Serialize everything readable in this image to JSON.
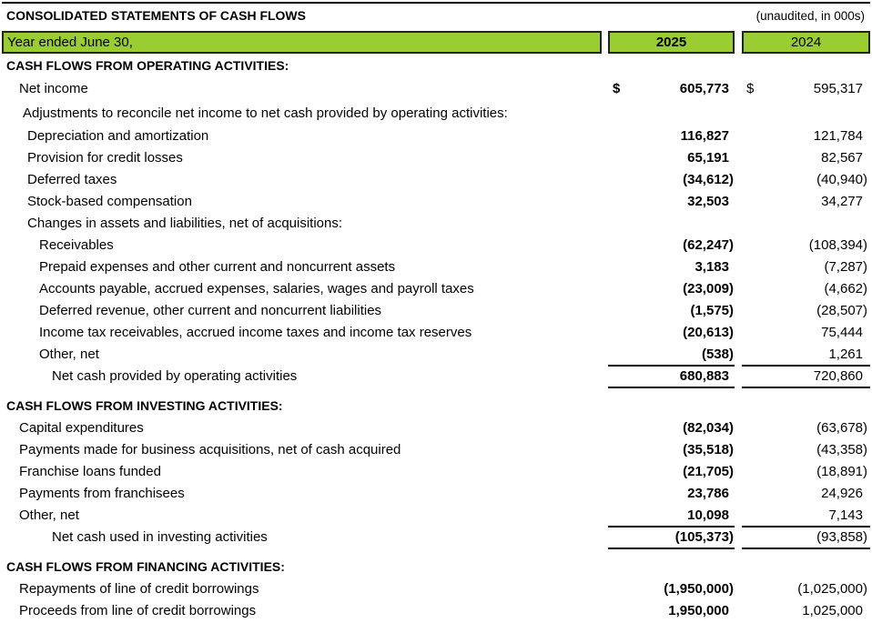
{
  "title": "CONSOLIDATED STATEMENTS OF CASH FLOWS",
  "note": "(unaudited, in 000s)",
  "header": {
    "label": "Year ended June 30,",
    "col1": "2025",
    "col2": "2024",
    "fill_color": "#9ACD32"
  },
  "rows": [
    {
      "label": "CASH FLOWS FROM OPERATING ACTIVITIES:",
      "type": "section"
    },
    {
      "label": "Net income",
      "indent": 1,
      "v2025": "605,773",
      "v2024": "595,317",
      "currency": "$"
    },
    {
      "label": "Adjustments to reconcile net income to net cash provided by operating activities:",
      "indent": 2
    },
    {
      "label": "Depreciation and amortization",
      "indent": 3,
      "v2025": "116,827",
      "v2024": "121,784"
    },
    {
      "label": "Provision for credit losses",
      "indent": 3,
      "v2025": "65,191",
      "v2024": "82,567"
    },
    {
      "label": "Deferred taxes",
      "indent": 3,
      "v2025": "(34,612)",
      "v2024": "(40,940)"
    },
    {
      "label": "Stock-based compensation",
      "indent": 3,
      "v2025": "32,503",
      "v2024": "34,277"
    },
    {
      "label": "Changes in assets and liabilities, net of acquisitions:",
      "indent": 3
    },
    {
      "label": "Receivables",
      "indent": 4,
      "v2025": "(62,247)",
      "v2024": "(108,394)"
    },
    {
      "label": "Prepaid expenses and other current and noncurrent assets",
      "indent": 4,
      "v2025": "3,183",
      "v2024": "(7,287)"
    },
    {
      "label": "Accounts payable, accrued expenses, salaries, wages and payroll taxes",
      "indent": 4,
      "v2025": "(23,009)",
      "v2024": "(4,662)"
    },
    {
      "label": "Deferred revenue, other current and noncurrent liabilities",
      "indent": 4,
      "v2025": "(1,575)",
      "v2024": "(28,507)"
    },
    {
      "label": "Income tax receivables, accrued income taxes and income tax reserves",
      "indent": 4,
      "v2025": "(20,613)",
      "v2024": "75,444"
    },
    {
      "label": "Other, net",
      "indent": 4,
      "v2025": "(538)",
      "v2024": "1,261"
    },
    {
      "label": "Net cash provided by operating activities",
      "indent": 5,
      "v2025": "680,883",
      "v2024": "720,860",
      "type": "total"
    },
    {
      "label": "CASH FLOWS FROM INVESTING ACTIVITIES:",
      "type": "section"
    },
    {
      "label": "Capital expenditures",
      "indent": 1,
      "v2025": "(82,034)",
      "v2024": "(63,678)"
    },
    {
      "label": "Payments made for business acquisitions, net of cash acquired",
      "indent": 1,
      "v2025": "(35,518)",
      "v2024": "(43,358)"
    },
    {
      "label": "Franchise loans funded",
      "indent": 1,
      "v2025": "(21,705)",
      "v2024": "(18,891)"
    },
    {
      "label": "Payments from franchisees",
      "indent": 1,
      "v2025": "23,786",
      "v2024": "24,926"
    },
    {
      "label": "Other, net",
      "indent": 1,
      "v2025": "10,098",
      "v2024": "7,143"
    },
    {
      "label": "Net cash used in investing activities",
      "indent": 5,
      "v2025": "(105,373)",
      "v2024": "(93,858)",
      "type": "total"
    },
    {
      "label": "CASH FLOWS FROM FINANCING ACTIVITIES:",
      "type": "section"
    },
    {
      "label": "Repayments of line of credit borrowings",
      "indent": 1,
      "v2025": "(1,950,000)",
      "v2024": "(1,025,000)"
    },
    {
      "label": "Proceeds from line of credit borrowings",
      "indent": 1,
      "v2025": "1,950,000",
      "v2024": "1,025,000"
    }
  ]
}
